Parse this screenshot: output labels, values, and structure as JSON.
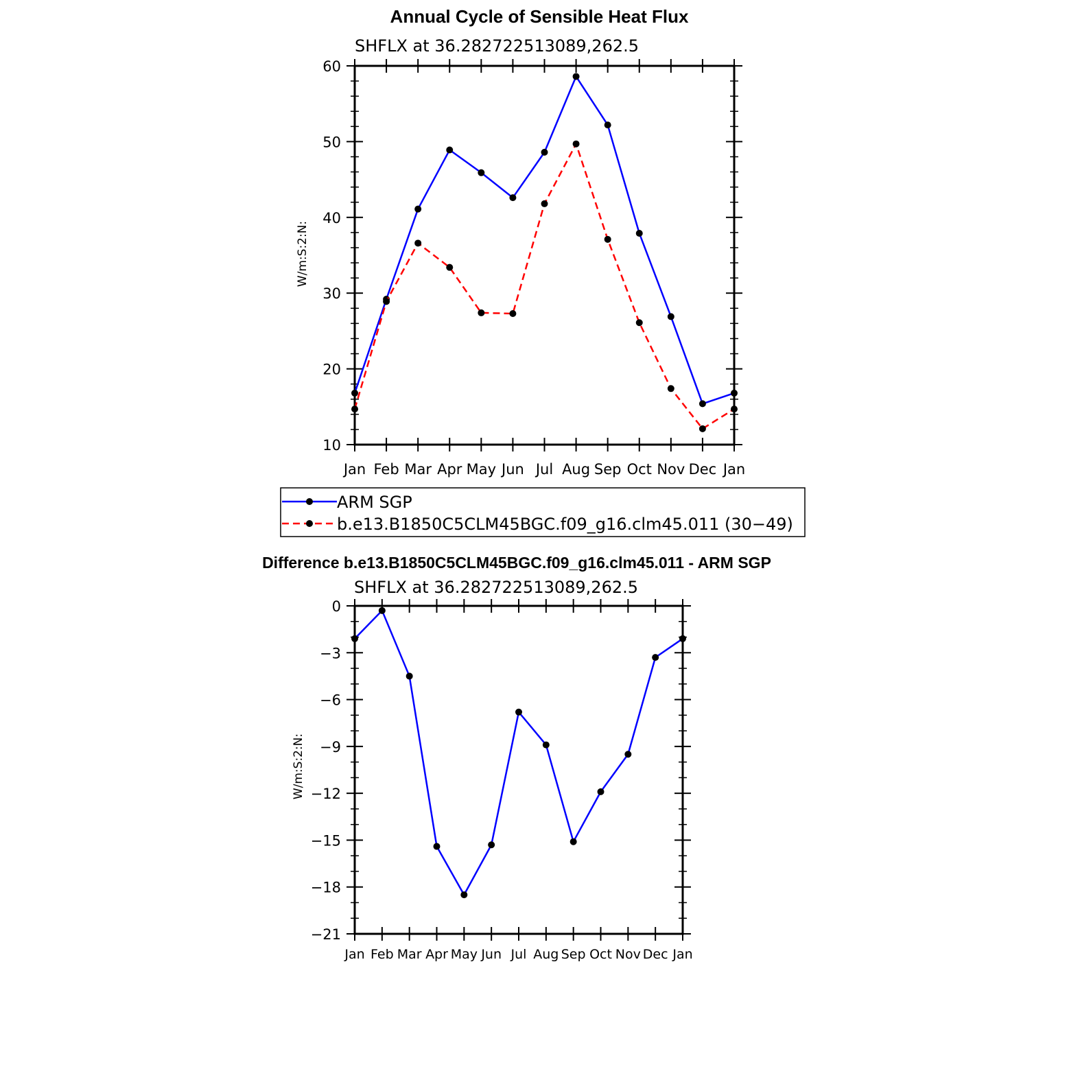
{
  "chart_data": [
    {
      "type": "line",
      "title": "Annual Cycle of Sensible Heat Flux",
      "subtitle": "SHFLX at 36.282722513089,262.5",
      "ylabel": "W/m:S:2:N:",
      "xlabel": "",
      "categories": [
        "Jan",
        "Feb",
        "Mar",
        "Apr",
        "May",
        "Jun",
        "Jul",
        "Aug",
        "Sep",
        "Oct",
        "Nov",
        "Dec",
        "Jan"
      ],
      "ylim": [
        10,
        60
      ],
      "yticks": [
        10,
        20,
        30,
        40,
        50,
        60
      ],
      "series": [
        {
          "name": "ARM SGP",
          "color": "#0000ff",
          "dash": "solid",
          "values": [
            16.8,
            29.2,
            41.1,
            48.9,
            45.9,
            42.6,
            48.6,
            58.6,
            52.2,
            37.9,
            26.9,
            15.4,
            16.8
          ]
        },
        {
          "name": "b.e13.B1850C5CLM45BGC.f09_g16.clm45.011 (30−49)",
          "color": "#ff0000",
          "dash": "dashed",
          "values": [
            14.7,
            28.9,
            36.6,
            33.4,
            27.4,
            27.3,
            41.8,
            49.7,
            37.1,
            26.1,
            17.4,
            12.1,
            14.7
          ]
        }
      ],
      "legend": "below"
    },
    {
      "type": "line",
      "title": "Difference b.e13.B1850C5CLM45BGC.f09_g16.clm45.011 - ARM SGP",
      "subtitle": "SHFLX at 36.282722513089,262.5",
      "ylabel": "W/m:S:2:N:",
      "xlabel": "",
      "categories": [
        "Jan",
        "Feb",
        "Mar",
        "Apr",
        "May",
        "Jun",
        "Jul",
        "Aug",
        "Sep",
        "Oct",
        "Nov",
        "Dec",
        "Jan"
      ],
      "ylim": [
        -21,
        0
      ],
      "yticks": [
        0,
        -3,
        -6,
        -9,
        -12,
        -15,
        -18,
        -21
      ],
      "yticklabels": [
        "0",
        "−3",
        "−6",
        "−9",
        "−12",
        "−15",
        "−18",
        "−21"
      ],
      "series": [
        {
          "color": "#0000ff",
          "dash": "solid",
          "values": [
            -2.1,
            -0.3,
            -4.5,
            -15.4,
            -18.5,
            -15.3,
            -6.8,
            -8.9,
            -15.1,
            -11.9,
            -9.5,
            -3.3,
            -2.1
          ]
        }
      ]
    }
  ]
}
